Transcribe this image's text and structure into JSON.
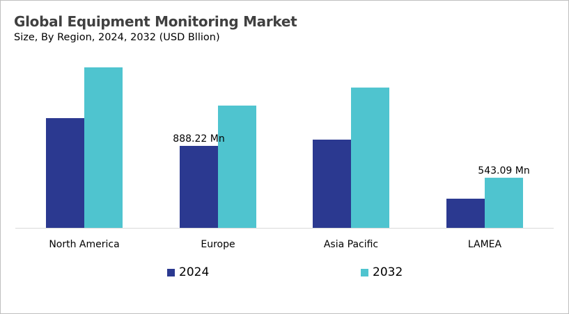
{
  "chart_data": {
    "type": "bar",
    "title": "Global Equipment Monitoring Market",
    "subtitle": "Size, By Region, 2024, 2032 (USD Bllion)",
    "categories": [
      "North America",
      "Europe",
      "Asia Pacific",
      "LAMEA"
    ],
    "series": [
      {
        "name": "2024",
        "color": "#2b3990",
        "values": [
          1189,
          888.22,
          956,
          316
        ]
      },
      {
        "name": "2032",
        "color": "#4fc4cf",
        "values": [
          1739,
          1325,
          1520,
          543.09
        ]
      }
    ],
    "data_labels": [
      {
        "series": 0,
        "category": 1,
        "text": "888.22 Mn"
      },
      {
        "series": 1,
        "category": 3,
        "text": "543.09 Mn"
      }
    ],
    "ylim": [
      0,
      1800
    ],
    "grid": false,
    "legend": "bottom"
  }
}
